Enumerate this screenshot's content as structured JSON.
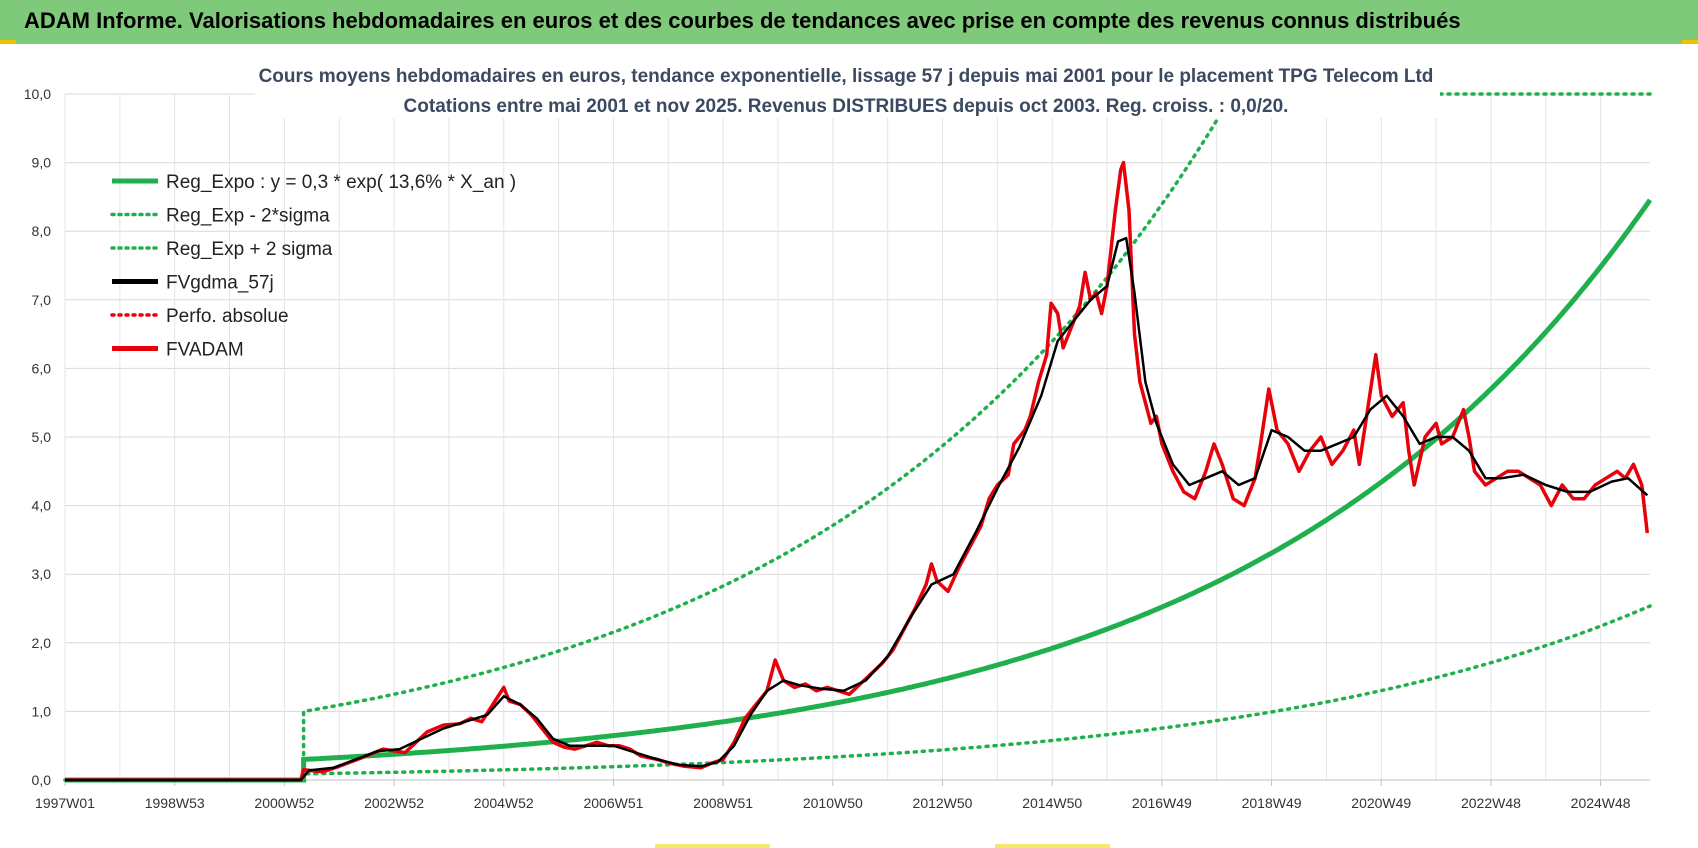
{
  "header": {
    "title": "ADAM Informe. Valorisations hebdomadaires en euros et des courbes de tendances avec prise en compte des revenus connus distribués"
  },
  "chart_data": {
    "type": "line",
    "title_line1": "Cours moyens  hebdomadaires en euros, tendance exponentielle, lissage 57 j depuis mai 2001 pour le placement TPG Telecom Ltd",
    "title_line2": "Cotations entre mai 2001 et nov 2025. Revenus DISTRIBUES depuis oct 2003. Reg. croiss. : 0,0/20.",
    "ylim": [
      0,
      10
    ],
    "xlim": [
      1997.0,
      2025.9
    ],
    "yticks": [
      0,
      1,
      2,
      3,
      4,
      5,
      6,
      7,
      8,
      9,
      10
    ],
    "ytick_labels": [
      "0,0",
      "1,0",
      "2,0",
      "3,0",
      "4,0",
      "5,0",
      "6,0",
      "7,0",
      "8,0",
      "9,0",
      "10,0"
    ],
    "xticks": [
      1997.0,
      1999.0,
      2001.0,
      2003.0,
      2005.0,
      2007.0,
      2009.0,
      2011.0,
      2013.0,
      2015.0,
      2017.0,
      2019.0,
      2021.0,
      2023.0,
      2025.0
    ],
    "xtick_labels": [
      "1997W01",
      "1998W53",
      "2000W52",
      "2002W52",
      "2004W52",
      "2006W51",
      "2008W51",
      "2010W50",
      "2012W50",
      "2014W50",
      "2016W49",
      "2018W49",
      "2020W49",
      "2022W48",
      "2024W48"
    ],
    "regression": {
      "base": 0.3,
      "rate": 0.136,
      "start": 2001.35,
      "lower_factor": 0.3,
      "upper_factor": 3.33
    },
    "legend": [
      {
        "label": "Reg_Expo : y = 0,3 * exp( 13,6% *  X_an )",
        "color": "#1fb04d",
        "style": "solid"
      },
      {
        "label": "Reg_Exp - 2*sigma",
        "color": "#1fb04d",
        "style": "dotted"
      },
      {
        "label": "Reg_Exp + 2 sigma",
        "color": "#1fb04d",
        "style": "dotted"
      },
      {
        "label": "FVgdma_57j",
        "color": "#000000",
        "style": "solid"
      },
      {
        "label": "Perfo. absolue",
        "color": "#e8000b",
        "style": "dotted"
      },
      {
        "label": "FVADAM",
        "color": "#e8000b",
        "style": "solid"
      }
    ],
    "series": [
      {
        "name": "FVADAM",
        "color": "#e8000b",
        "points": [
          [
            1997.0,
            0
          ],
          [
            2001.3,
            0
          ],
          [
            2001.35,
            0.15
          ],
          [
            2001.7,
            0.12
          ],
          [
            2002.0,
            0.2
          ],
          [
            2002.4,
            0.32
          ],
          [
            2002.8,
            0.45
          ],
          [
            2003.2,
            0.4
          ],
          [
            2003.4,
            0.55
          ],
          [
            2003.6,
            0.7
          ],
          [
            2003.9,
            0.8
          ],
          [
            2004.2,
            0.82
          ],
          [
            2004.4,
            0.9
          ],
          [
            2004.6,
            0.85
          ],
          [
            2004.8,
            1.1
          ],
          [
            2005.0,
            1.35
          ],
          [
            2005.1,
            1.15
          ],
          [
            2005.3,
            1.1
          ],
          [
            2005.5,
            0.95
          ],
          [
            2005.7,
            0.75
          ],
          [
            2005.9,
            0.55
          ],
          [
            2006.1,
            0.48
          ],
          [
            2006.3,
            0.45
          ],
          [
            2006.5,
            0.5
          ],
          [
            2006.7,
            0.55
          ],
          [
            2006.9,
            0.5
          ],
          [
            2007.1,
            0.5
          ],
          [
            2007.3,
            0.45
          ],
          [
            2007.5,
            0.35
          ],
          [
            2007.8,
            0.3
          ],
          [
            2008.0,
            0.25
          ],
          [
            2008.3,
            0.2
          ],
          [
            2008.6,
            0.18
          ],
          [
            2008.8,
            0.25
          ],
          [
            2009.0,
            0.3
          ],
          [
            2009.2,
            0.55
          ],
          [
            2009.4,
            0.9
          ],
          [
            2009.6,
            1.1
          ],
          [
            2009.8,
            1.3
          ],
          [
            2009.95,
            1.75
          ],
          [
            2010.1,
            1.45
          ],
          [
            2010.3,
            1.35
          ],
          [
            2010.5,
            1.4
          ],
          [
            2010.7,
            1.3
          ],
          [
            2010.9,
            1.35
          ],
          [
            2011.1,
            1.3
          ],
          [
            2011.3,
            1.25
          ],
          [
            2011.5,
            1.4
          ],
          [
            2011.7,
            1.55
          ],
          [
            2011.9,
            1.7
          ],
          [
            2012.1,
            1.9
          ],
          [
            2012.3,
            2.2
          ],
          [
            2012.5,
            2.5
          ],
          [
            2012.7,
            2.85
          ],
          [
            2012.8,
            3.15
          ],
          [
            2012.9,
            2.9
          ],
          [
            2013.1,
            2.75
          ],
          [
            2013.3,
            3.1
          ],
          [
            2013.5,
            3.4
          ],
          [
            2013.7,
            3.7
          ],
          [
            2013.85,
            4.1
          ],
          [
            2014.0,
            4.3
          ],
          [
            2014.2,
            4.45
          ],
          [
            2014.3,
            4.9
          ],
          [
            2014.5,
            5.1
          ],
          [
            2014.6,
            5.3
          ],
          [
            2014.75,
            5.8
          ],
          [
            2014.9,
            6.2
          ],
          [
            2014.98,
            6.95
          ],
          [
            2015.1,
            6.8
          ],
          [
            2015.2,
            6.3
          ],
          [
            2015.35,
            6.6
          ],
          [
            2015.5,
            6.9
          ],
          [
            2015.6,
            7.4
          ],
          [
            2015.7,
            7.0
          ],
          [
            2015.8,
            7.1
          ],
          [
            2015.9,
            6.8
          ],
          [
            2016.0,
            7.2
          ],
          [
            2016.15,
            8.3
          ],
          [
            2016.25,
            8.9
          ],
          [
            2016.3,
            9.0
          ],
          [
            2016.4,
            8.3
          ],
          [
            2016.5,
            6.5
          ],
          [
            2016.6,
            5.8
          ],
          [
            2016.7,
            5.5
          ],
          [
            2016.8,
            5.2
          ],
          [
            2016.9,
            5.3
          ],
          [
            2017.0,
            4.9
          ],
          [
            2017.2,
            4.5
          ],
          [
            2017.4,
            4.2
          ],
          [
            2017.6,
            4.1
          ],
          [
            2017.8,
            4.5
          ],
          [
            2017.95,
            4.9
          ],
          [
            2018.1,
            4.6
          ],
          [
            2018.3,
            4.1
          ],
          [
            2018.5,
            4.0
          ],
          [
            2018.7,
            4.4
          ],
          [
            2018.8,
            4.9
          ],
          [
            2018.95,
            5.7
          ],
          [
            2019.1,
            5.1
          ],
          [
            2019.3,
            4.9
          ],
          [
            2019.5,
            4.5
          ],
          [
            2019.7,
            4.8
          ],
          [
            2019.9,
            5.0
          ],
          [
            2020.1,
            4.6
          ],
          [
            2020.3,
            4.8
          ],
          [
            2020.5,
            5.1
          ],
          [
            2020.6,
            4.6
          ],
          [
            2020.75,
            5.4
          ],
          [
            2020.9,
            6.2
          ],
          [
            2021.0,
            5.6
          ],
          [
            2021.2,
            5.3
          ],
          [
            2021.4,
            5.5
          ],
          [
            2021.5,
            4.8
          ],
          [
            2021.6,
            4.3
          ],
          [
            2021.8,
            5.0
          ],
          [
            2022.0,
            5.2
          ],
          [
            2022.1,
            4.9
          ],
          [
            2022.3,
            5.0
          ],
          [
            2022.5,
            5.4
          ],
          [
            2022.6,
            5.0
          ],
          [
            2022.7,
            4.5
          ],
          [
            2022.9,
            4.3
          ],
          [
            2023.1,
            4.4
          ],
          [
            2023.3,
            4.5
          ],
          [
            2023.5,
            4.5
          ],
          [
            2023.7,
            4.4
          ],
          [
            2023.9,
            4.3
          ],
          [
            2024.1,
            4.0
          ],
          [
            2024.3,
            4.3
          ],
          [
            2024.5,
            4.1
          ],
          [
            2024.7,
            4.1
          ],
          [
            2024.9,
            4.3
          ],
          [
            2025.1,
            4.4
          ],
          [
            2025.3,
            4.5
          ],
          [
            2025.45,
            4.4
          ],
          [
            2025.6,
            4.6
          ],
          [
            2025.75,
            4.3
          ],
          [
            2025.85,
            3.6
          ]
        ]
      },
      {
        "name": "FVgdma_57j",
        "color": "#000000",
        "points": [
          [
            1997.0,
            0
          ],
          [
            2001.3,
            0
          ],
          [
            2001.45,
            0.14
          ],
          [
            2001.9,
            0.18
          ],
          [
            2002.3,
            0.3
          ],
          [
            2002.7,
            0.42
          ],
          [
            2003.1,
            0.45
          ],
          [
            2003.5,
            0.6
          ],
          [
            2003.9,
            0.75
          ],
          [
            2004.3,
            0.85
          ],
          [
            2004.7,
            0.95
          ],
          [
            2005.0,
            1.22
          ],
          [
            2005.3,
            1.1
          ],
          [
            2005.6,
            0.9
          ],
          [
            2005.9,
            0.6
          ],
          [
            2006.2,
            0.5
          ],
          [
            2006.6,
            0.5
          ],
          [
            2007.0,
            0.5
          ],
          [
            2007.4,
            0.4
          ],
          [
            2007.8,
            0.3
          ],
          [
            2008.2,
            0.22
          ],
          [
            2008.6,
            0.2
          ],
          [
            2008.9,
            0.26
          ],
          [
            2009.2,
            0.5
          ],
          [
            2009.5,
            0.95
          ],
          [
            2009.8,
            1.3
          ],
          [
            2010.1,
            1.45
          ],
          [
            2010.4,
            1.38
          ],
          [
            2010.8,
            1.33
          ],
          [
            2011.2,
            1.3
          ],
          [
            2011.6,
            1.45
          ],
          [
            2012.0,
            1.8
          ],
          [
            2012.4,
            2.35
          ],
          [
            2012.8,
            2.85
          ],
          [
            2013.2,
            3.0
          ],
          [
            2013.6,
            3.6
          ],
          [
            2014.0,
            4.25
          ],
          [
            2014.4,
            4.85
          ],
          [
            2014.8,
            5.6
          ],
          [
            2015.1,
            6.4
          ],
          [
            2015.4,
            6.7
          ],
          [
            2015.7,
            7.0
          ],
          [
            2016.0,
            7.2
          ],
          [
            2016.2,
            7.85
          ],
          [
            2016.35,
            7.9
          ],
          [
            2016.5,
            7.1
          ],
          [
            2016.7,
            5.8
          ],
          [
            2016.9,
            5.2
          ],
          [
            2017.2,
            4.6
          ],
          [
            2017.5,
            4.3
          ],
          [
            2017.8,
            4.4
          ],
          [
            2018.1,
            4.5
          ],
          [
            2018.4,
            4.3
          ],
          [
            2018.7,
            4.4
          ],
          [
            2019.0,
            5.1
          ],
          [
            2019.3,
            5.0
          ],
          [
            2019.6,
            4.8
          ],
          [
            2019.9,
            4.8
          ],
          [
            2020.2,
            4.9
          ],
          [
            2020.5,
            5.0
          ],
          [
            2020.8,
            5.4
          ],
          [
            2021.1,
            5.6
          ],
          [
            2021.4,
            5.3
          ],
          [
            2021.7,
            4.9
          ],
          [
            2022.0,
            5.0
          ],
          [
            2022.3,
            5.0
          ],
          [
            2022.6,
            4.8
          ],
          [
            2022.9,
            4.4
          ],
          [
            2023.2,
            4.4
          ],
          [
            2023.6,
            4.45
          ],
          [
            2024.0,
            4.3
          ],
          [
            2024.4,
            4.2
          ],
          [
            2024.8,
            4.2
          ],
          [
            2025.2,
            4.35
          ],
          [
            2025.5,
            4.4
          ],
          [
            2025.85,
            4.15
          ]
        ]
      }
    ]
  }
}
